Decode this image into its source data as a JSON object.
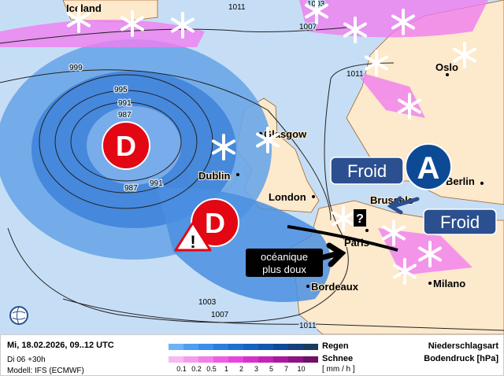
{
  "map": {
    "cities": [
      "Iceland",
      "Glasgow",
      "Dublin",
      "London",
      "Brussels",
      "Paris",
      "Bordeaux",
      "Milano",
      "Berlin",
      "Oslo"
    ],
    "isobars": [
      "1003",
      "1007",
      "999",
      "995",
      "991",
      "987",
      "987",
      "991",
      "1011",
      "1011",
      "1003",
      "1007",
      "1011"
    ],
    "annotations": {
      "low1": "D",
      "low2": "D",
      "high": "A",
      "froid1": "Froid",
      "froid2": "Froid",
      "warm_line1": "océanique",
      "warm_line2": "plus doux",
      "question": "?",
      "warning": "!"
    },
    "colors": {
      "sea": "#c6def5",
      "land": "#fde9cc",
      "rain": "#2f7fd8",
      "snow": "#f07ef0",
      "low": "#e30613",
      "high": "#0d4a96",
      "label_box": "#2b4f8f"
    }
  },
  "legend": {
    "date": "Mi, 18.02.2026, 09..12 UTC",
    "run": "Di 06 +30h",
    "model": "Modell: IFS (ECMWF)",
    "rain": "Regen",
    "snow": "Schnee",
    "unit": "[ mm / h ]",
    "ticks": [
      "0.1",
      "0.2",
      "0.5",
      "1",
      "2",
      "3",
      "5",
      "7",
      "10"
    ],
    "type": "Niederschlagsart",
    "pressure": "Bodendruck [hPa]",
    "rain_colors": [
      "#6cb4f5",
      "#4e9ff0",
      "#3b8fe8",
      "#2a7fde",
      "#1e70d0",
      "#1862bf",
      "#1456ad",
      "#0f4a98",
      "#163f7a",
      "#1c3a5e"
    ],
    "snow_colors": [
      "#f9b8f2",
      "#f59cec",
      "#f27fe8",
      "#ee5ee2",
      "#e845dc",
      "#d632c9",
      "#c225b4",
      "#a81a9c",
      "#8d1484",
      "#6e1168"
    ]
  }
}
